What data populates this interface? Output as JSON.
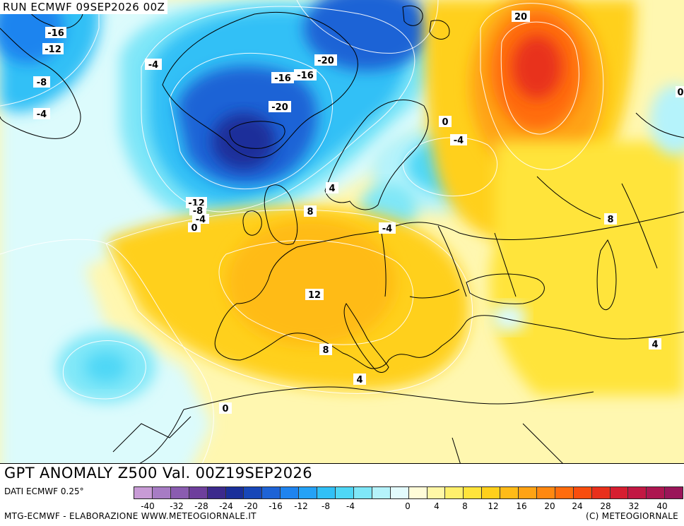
{
  "header": {
    "run_label": "RUN ECMWF 09SEP2026 00Z"
  },
  "map": {
    "title": "GPT ANOMALY Z500 Val. 00Z19SEP2026",
    "contour_labels": [
      "-16",
      "-12",
      "-8",
      "-4",
      "-4",
      "-20",
      "-16",
      "-16",
      "-20",
      "20",
      "0",
      "-4",
      "-12",
      "-8",
      "-4",
      "0",
      "4",
      "8",
      "-4",
      "8",
      "12",
      "8",
      "4",
      "0",
      "4",
      "0"
    ]
  },
  "footer": {
    "dati": "DATI ECMWF 0.25°",
    "credits": "MTG-ECMWF - ELABORAZIONE WWW.METEOGIORNALE.IT",
    "copyright": "(C) METEOGIORNALE"
  },
  "legend": {
    "tick_labels": [
      "-40",
      "-32",
      "-28",
      "-24",
      "-20",
      "-16",
      "-12",
      "-8",
      "-4",
      "0",
      "4",
      "8",
      "12",
      "16",
      "20",
      "24",
      "28",
      "32",
      "40"
    ],
    "colors": [
      "#c89bd6",
      "#a77cc4",
      "#8a5cb0",
      "#6e3f9c",
      "#3c2a8c",
      "#1a2f9a",
      "#1847b8",
      "#1e63d6",
      "#1f84ef",
      "#25a2f6",
      "#31c0f6",
      "#4fd7f6",
      "#7fe7f8",
      "#b5f3fb",
      "#e2fbfd",
      "#fffcd8",
      "#fff7a6",
      "#fff06c",
      "#ffe43b",
      "#ffd01c",
      "#ffbb18",
      "#ffa314",
      "#ff8810",
      "#ff6c0d",
      "#f84d0e",
      "#e8301b",
      "#d61e30",
      "#c21843",
      "#ad1650",
      "#9a1559"
    ]
  }
}
